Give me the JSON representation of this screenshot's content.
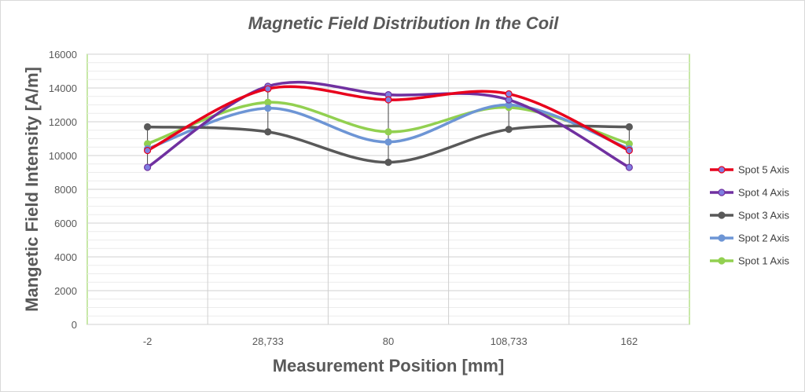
{
  "chart_data": {
    "type": "line",
    "title": "Magnetic Field Distribution In the Coil",
    "xlabel": "Measurement Position [mm]",
    "ylabel": "Mangetic Field Intensity [A/m]",
    "categories": [
      "-2",
      "28,733",
      "80",
      "108,733",
      "162"
    ],
    "ylim": [
      0,
      16000
    ],
    "yticks": [
      "0",
      "2000",
      "4000",
      "6000",
      "8000",
      "10000",
      "12000",
      "14000",
      "16000"
    ],
    "grid": true,
    "smooth": true,
    "legend_position": "right",
    "series": [
      {
        "name": "Spot 5 Axis",
        "values": [
          10300,
          13950,
          13300,
          13650,
          10300
        ],
        "color": "#e8001c",
        "marker": "#7f7fe0"
      },
      {
        "name": "Spot 4 Axis",
        "values": [
          9300,
          14100,
          13600,
          13300,
          9300
        ],
        "color": "#7030a0",
        "marker": "#7f7fe0"
      },
      {
        "name": "Spot 3 Axis",
        "values": [
          11700,
          11400,
          9600,
          11550,
          11700
        ],
        "color": "#595959",
        "marker": "#595959"
      },
      {
        "name": "Spot 2 Axis",
        "values": [
          10400,
          12800,
          10800,
          13000,
          10400
        ],
        "color": "#6d95d5",
        "marker": "#6d95d5"
      },
      {
        "name": "Spot 1 Axis",
        "values": [
          10700,
          13150,
          11400,
          12850,
          10700
        ],
        "color": "#92d050",
        "marker": "#92d050"
      }
    ]
  }
}
